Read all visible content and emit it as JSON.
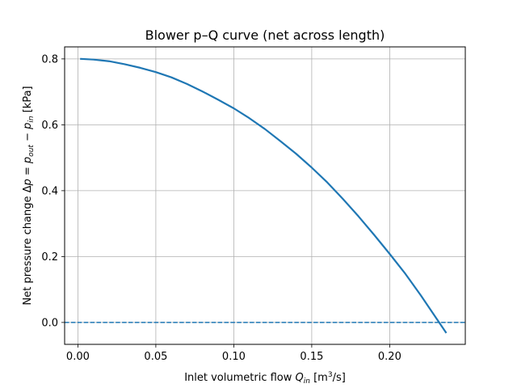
{
  "chart_data": {
    "type": "line",
    "title": "Blower p–Q curve (net across length)",
    "xlabel": {
      "prefix": "Inlet volumetric flow ",
      "var": "Q",
      "var_sub": "in",
      "unit_open": " [m",
      "unit_sup": "3",
      "unit_close": "/s]"
    },
    "ylabel": {
      "prefix": "Net pressure change Δ",
      "p1": "p",
      "eq": " = ",
      "p2": "p",
      "p2_sub": "out",
      "minus": " − ",
      "p3": "p",
      "p3_sub": "in",
      "unit": " [kPa]"
    },
    "xlim": [
      -0.0085,
      0.2485
    ],
    "ylim": [
      -0.0665,
      0.8365
    ],
    "x_ticks": [
      0.0,
      0.05,
      0.1,
      0.15,
      0.2
    ],
    "x_tick_labels": [
      "0.00",
      "0.05",
      "0.10",
      "0.15",
      "0.20"
    ],
    "y_ticks": [
      0.0,
      0.2,
      0.4,
      0.6,
      0.8
    ],
    "y_tick_labels": [
      "0.0",
      "0.2",
      "0.4",
      "0.6",
      "0.8"
    ],
    "grid": true,
    "series": [
      {
        "color": "#1f77b4",
        "style": "solid",
        "x": [
          0.002,
          0.01,
          0.02,
          0.03,
          0.04,
          0.05,
          0.06,
          0.07,
          0.08,
          0.09,
          0.1,
          0.11,
          0.12,
          0.13,
          0.14,
          0.15,
          0.16,
          0.17,
          0.18,
          0.19,
          0.2,
          0.21,
          0.22,
          0.23,
          0.236
        ],
        "y": [
          0.8,
          0.798,
          0.793,
          0.784,
          0.773,
          0.76,
          0.744,
          0.724,
          0.701,
          0.676,
          0.65,
          0.62,
          0.587,
          0.55,
          0.512,
          0.47,
          0.425,
          0.375,
          0.322,
          0.266,
          0.208,
          0.148,
          0.082,
          0.012,
          -0.03
        ]
      }
    ],
    "reference_line": {
      "y": 0.0,
      "color": "#1f77b4",
      "style": "dashed"
    }
  }
}
